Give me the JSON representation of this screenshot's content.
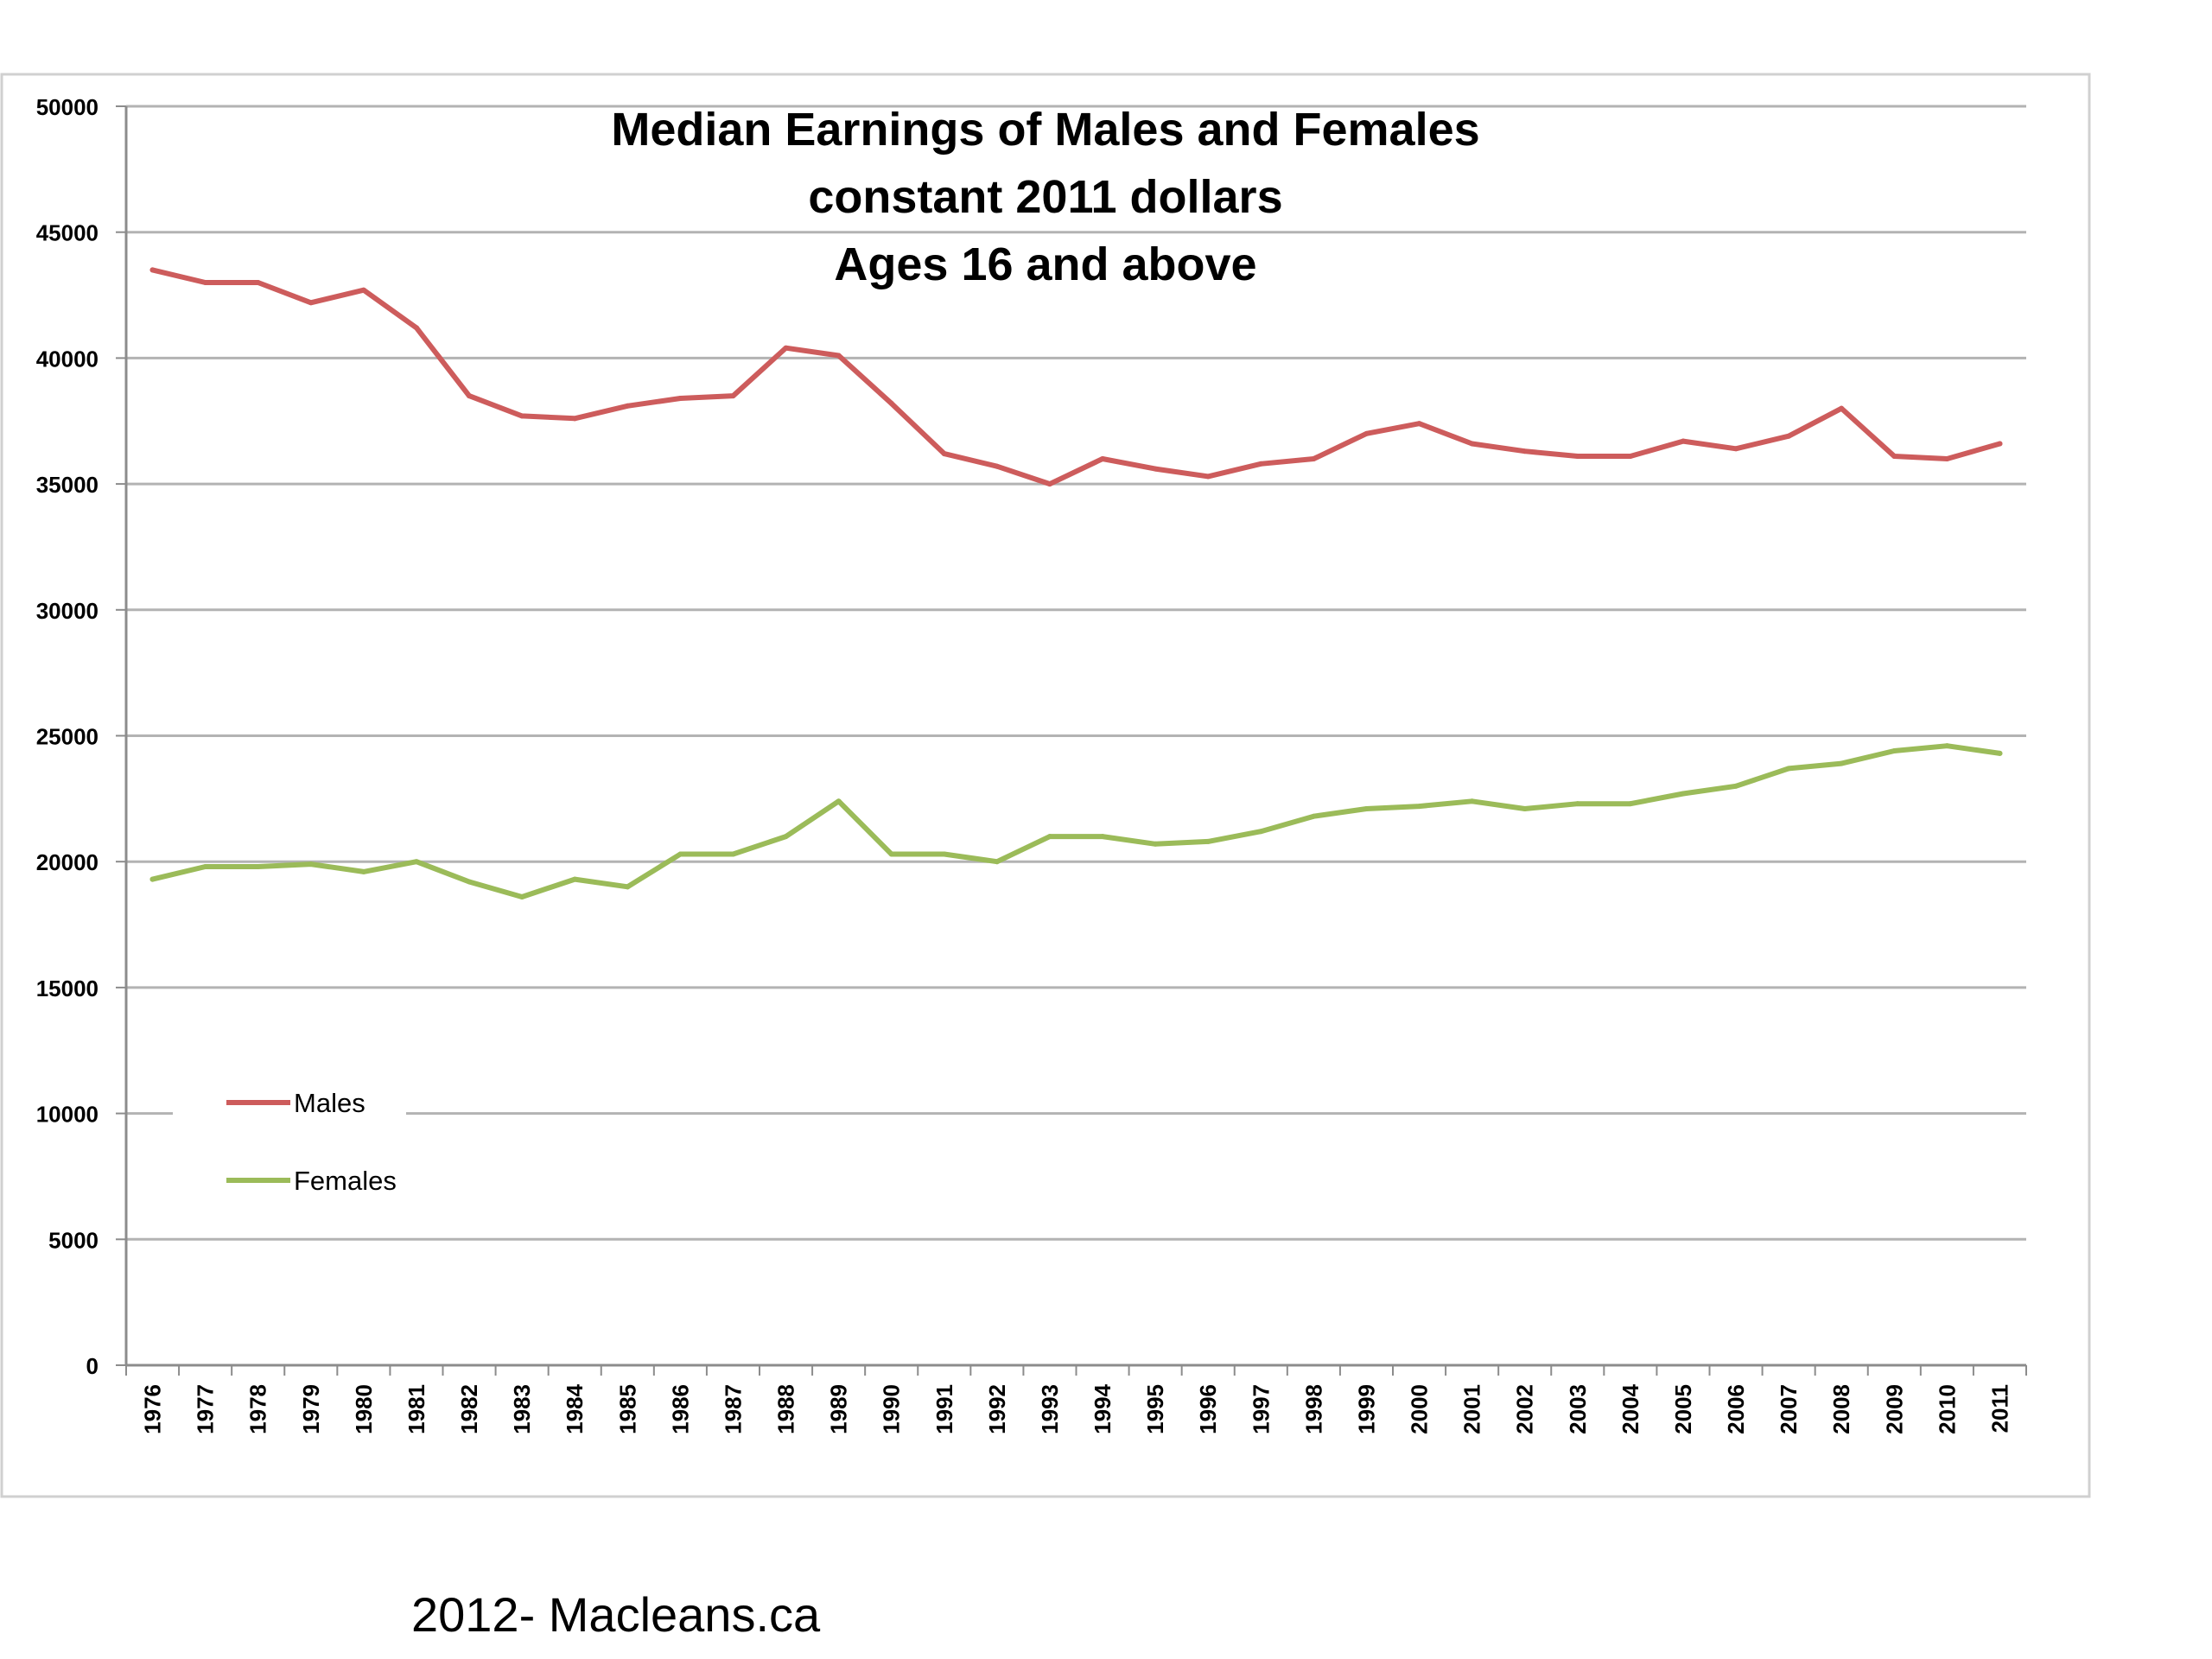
{
  "chart_data": {
    "type": "line",
    "title": [
      "Median Earnings of Males and Females",
      "constant 2011 dollars",
      "Ages 16 and above"
    ],
    "xlabel": "",
    "ylabel": "",
    "categories": [
      "1976",
      "1977",
      "1978",
      "1979",
      "1980",
      "1981",
      "1982",
      "1983",
      "1984",
      "1985",
      "1986",
      "1987",
      "1988",
      "1989",
      "1990",
      "1991",
      "1992",
      "1993",
      "1994",
      "1995",
      "1996",
      "1997",
      "1998",
      "1999",
      "2000",
      "2001",
      "2002",
      "2003",
      "2004",
      "2005",
      "2006",
      "2007",
      "2008",
      "2009",
      "2010",
      "2011"
    ],
    "ylim": [
      0,
      50000
    ],
    "yticks": [
      "0",
      "5000",
      "10000",
      "15000",
      "20000",
      "25000",
      "30000",
      "35000",
      "40000",
      "45000",
      "50000"
    ],
    "grid": true,
    "legend_position": "lower-left",
    "series": [
      {
        "name": "Males",
        "color": "#cd5c5c",
        "values": [
          43500,
          43000,
          43000,
          42200,
          42700,
          41200,
          38500,
          37700,
          37600,
          38100,
          38400,
          38500,
          40400,
          40100,
          38200,
          36200,
          35700,
          35000,
          36000,
          35600,
          35300,
          35800,
          36000,
          37000,
          37400,
          36600,
          36300,
          36100,
          36100,
          36700,
          36400,
          36900,
          38000,
          36100,
          36000,
          36600
        ]
      },
      {
        "name": "Females",
        "color": "#9bbb59",
        "values": [
          19300,
          19800,
          19800,
          19900,
          19600,
          20000,
          19200,
          18600,
          19300,
          19000,
          20300,
          20300,
          21000,
          22400,
          20300,
          20300,
          20000,
          21000,
          21000,
          20700,
          20800,
          21200,
          21800,
          22100,
          22200,
          22400,
          22100,
          22300,
          22300,
          22700,
          23000,
          23700,
          23900,
          24400,
          24600,
          24300
        ]
      }
    ]
  },
  "footer": {
    "credit": "2012- Macleans.ca"
  },
  "colors": {
    "gridline": "#b3b3b3",
    "axis": "#8c8c8c",
    "frame": "#d0d0d0"
  }
}
